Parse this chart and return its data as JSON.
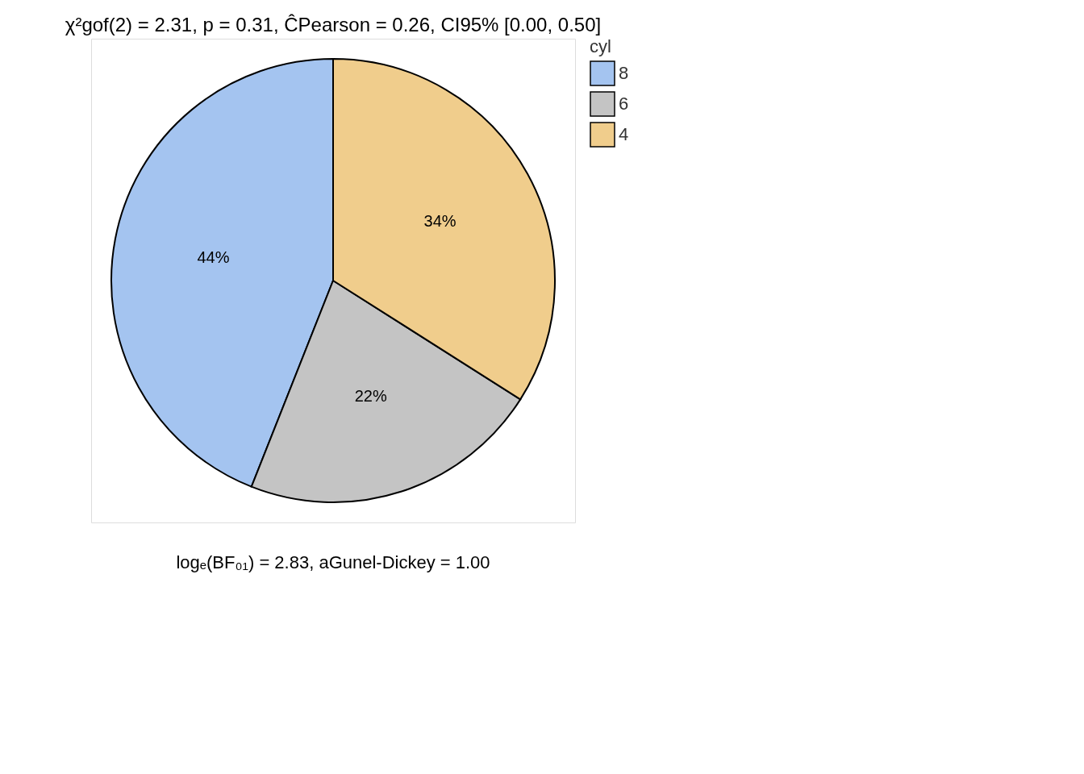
{
  "chart_data": {
    "type": "pie",
    "title": "χ²gof(2) = 2.31, p = 0.31, ĈPearson = 0.26, CI95% [0.00, 0.50]",
    "annotations": [
      "logₑ(BF₀₁) = 2.83, aGunel-Dickey = 1.00"
    ],
    "legend_title": "cyl",
    "legend": "right",
    "categories": [
      "8",
      "6",
      "4"
    ],
    "values": [
      44,
      22,
      34
    ],
    "colors": [
      "#a4c4f0",
      "#c4c4c4",
      "#f0cd8c"
    ],
    "value_labels": [
      "44%",
      "22%",
      "34%"
    ]
  }
}
